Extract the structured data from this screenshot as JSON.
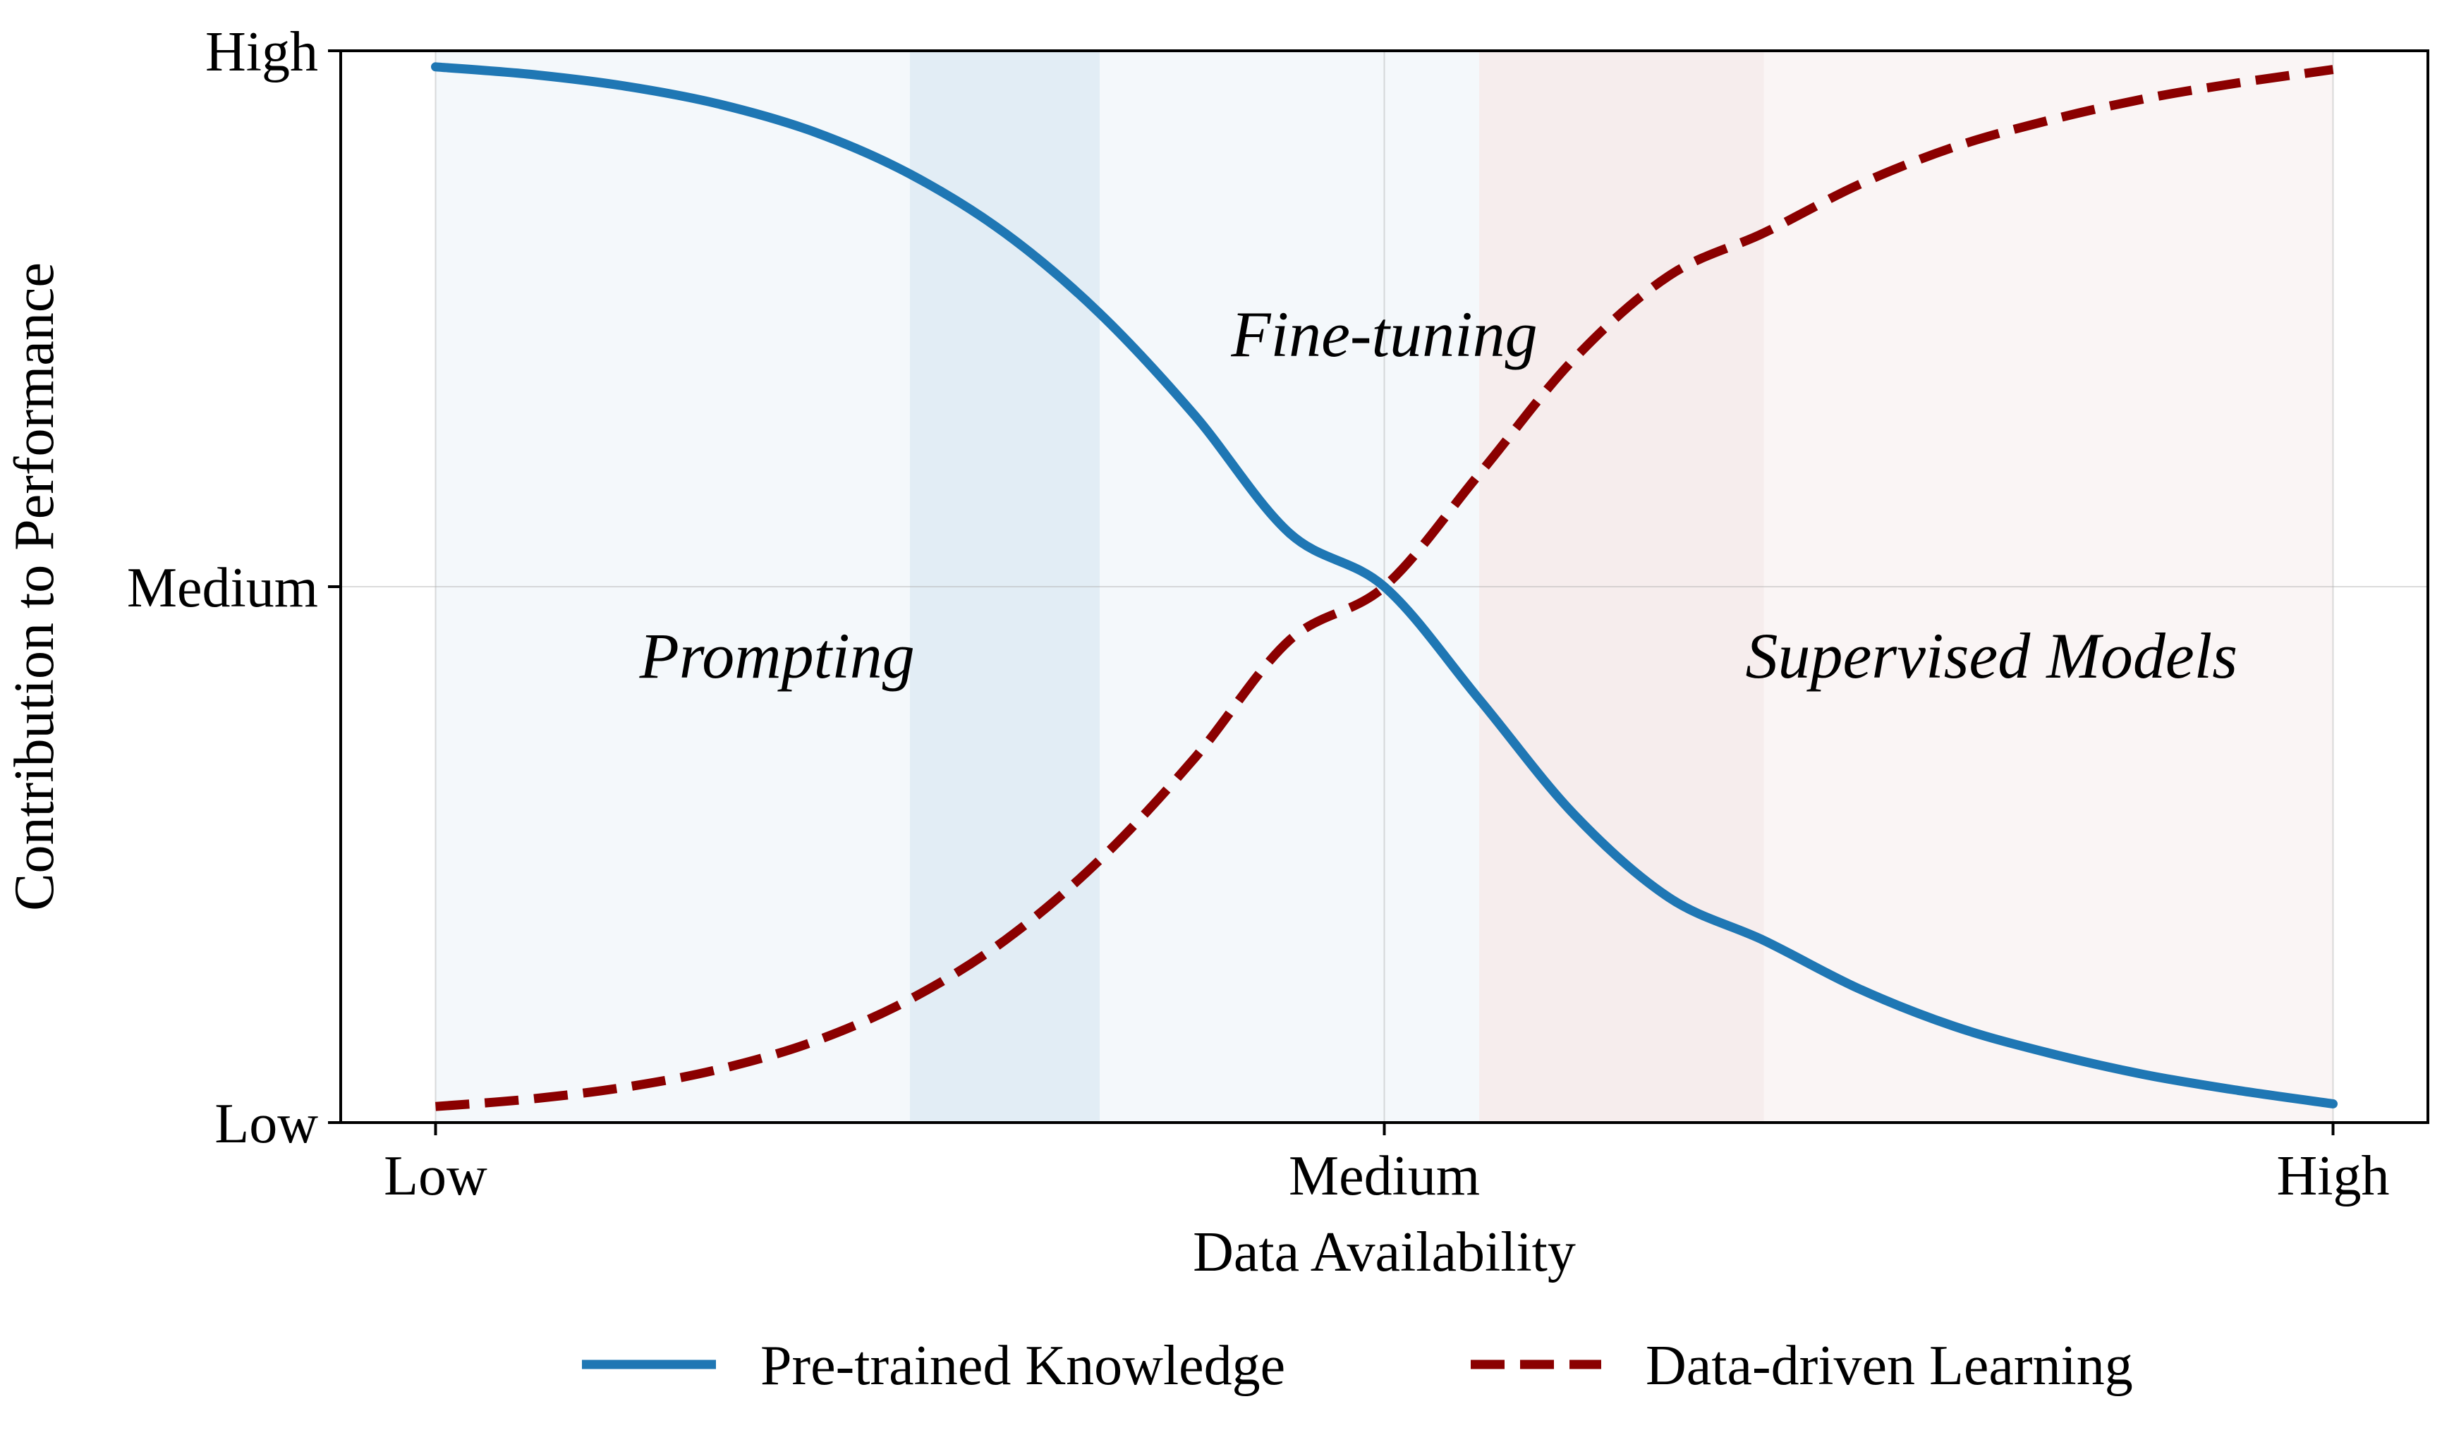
{
  "chart_data": {
    "type": "line",
    "xlabel": "Data Availability",
    "ylabel": "Contribution to Performance",
    "xlim": [
      -0.1,
      2.1
    ],
    "ylim": [
      0,
      2
    ],
    "x_ticks": [
      {
        "value": 0,
        "label": "Low"
      },
      {
        "value": 1,
        "label": "Medium"
      },
      {
        "value": 2,
        "label": "High"
      }
    ],
    "y_ticks": [
      {
        "value": 0,
        "label": "Low"
      },
      {
        "value": 1,
        "label": "Medium"
      },
      {
        "value": 2,
        "label": "High"
      }
    ],
    "grid": true,
    "legend_placement": "bottom-center",
    "regions": [
      {
        "x_start": 0,
        "x_end": 0.7,
        "color": "#1f77b4",
        "opacity": 0.05
      },
      {
        "x_start": 0.5,
        "x_end": 1.1,
        "color": "#1f77b4",
        "opacity": 0.05
      },
      {
        "x_start": 1.1,
        "x_end": 2,
        "color": "#8b0000",
        "opacity": 0.04
      },
      {
        "x_start": 0.5,
        "x_end": 0.7,
        "color": "#1f77b4",
        "opacity": 0.03
      },
      {
        "x_start": 1.1,
        "x_end": 1.4,
        "color": "#8b0000",
        "opacity": 0.03
      }
    ],
    "annotations": [
      {
        "text": "Prompting",
        "x": 0.36,
        "y": 0.87
      },
      {
        "text": "Fine-tuning",
        "x": 1.0,
        "y": 1.47
      },
      {
        "text": "Supervised Models",
        "x": 1.64,
        "y": 0.87
      }
    ],
    "series": [
      {
        "name": "Pre-trained Knowledge",
        "color": "#1f77b4",
        "style": "solid",
        "x": [
          0,
          0.1,
          0.2,
          0.3,
          0.4,
          0.5,
          0.6,
          0.7,
          0.8,
          0.9,
          1.0,
          1.1,
          1.2,
          1.3,
          1.4,
          1.5,
          1.6,
          1.7,
          1.8,
          1.9,
          2.0
        ],
        "values": [
          1.97,
          1.956,
          1.934,
          1.9,
          1.848,
          1.77,
          1.66,
          1.51,
          1.32,
          1.1,
          1.0,
          0.79,
          0.575,
          0.42,
          0.34,
          0.25,
          0.18,
          0.13,
          0.09,
          0.06,
          0.035
        ]
      },
      {
        "name": "Data-driven Learning",
        "color": "#8b0000",
        "style": "dashed",
        "x": [
          0,
          0.1,
          0.2,
          0.3,
          0.4,
          0.5,
          0.6,
          0.7,
          0.8,
          0.9,
          1.0,
          1.1,
          1.2,
          1.3,
          1.4,
          1.5,
          1.6,
          1.7,
          1.8,
          1.9,
          2.0
        ],
        "values": [
          0.03,
          0.044,
          0.066,
          0.1,
          0.152,
          0.23,
          0.34,
          0.49,
          0.68,
          0.9,
          1.0,
          1.21,
          1.425,
          1.58,
          1.66,
          1.75,
          1.82,
          1.87,
          1.91,
          1.94,
          1.965
        ]
      }
    ]
  }
}
